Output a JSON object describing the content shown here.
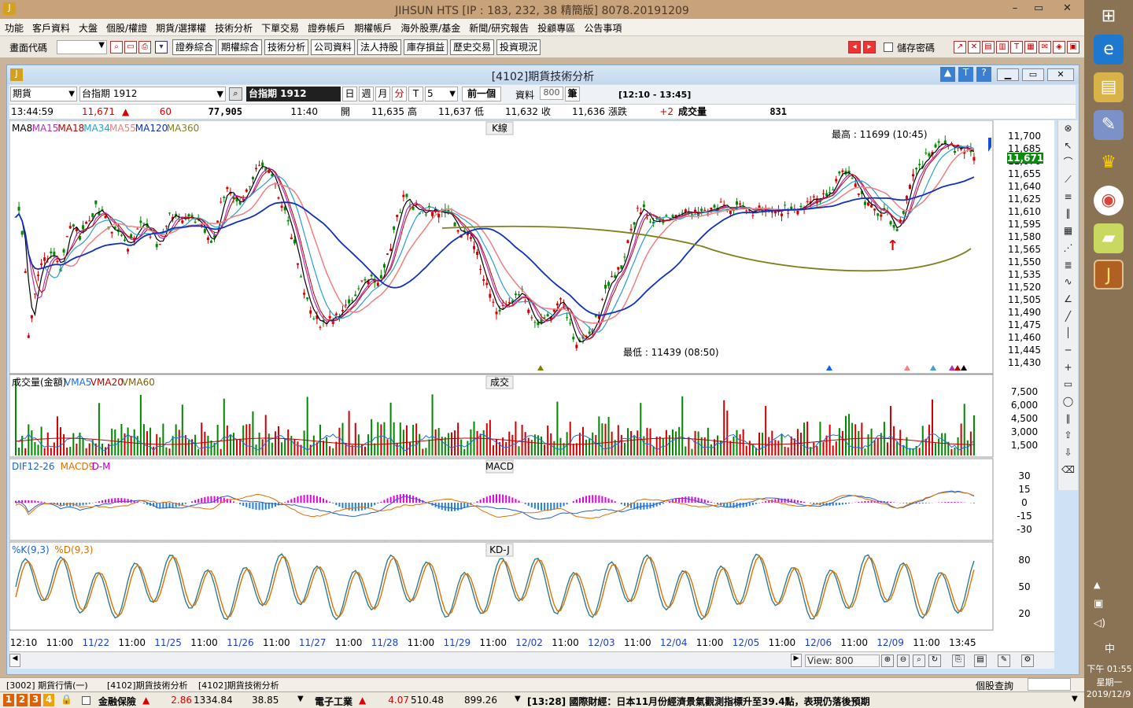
{
  "window": {
    "title": "JIHSUN HTS    [IP : 183, 232, 38 精簡版] 8078.20191209"
  },
  "menu": [
    "功能",
    "客戶資料",
    "大盤",
    "個股/權證",
    "期貨/選擇權",
    "技術分析",
    "下單交易",
    "證券帳戶",
    "期權帳戶",
    "海外股票/基金",
    "新聞/研究報告",
    "投顧專區",
    "公告事項"
  ],
  "toolbar": {
    "code_label": "畫面代碼",
    "buttons": [
      "證券綜合",
      "期權綜合",
      "技術分析",
      "公司資料",
      "法人持股",
      "庫存損益",
      "歷史交易",
      "投資現況"
    ],
    "save_password": "儲存密碼"
  },
  "child": {
    "title": "[4102]期貨技術分析"
  },
  "query": {
    "type": "期貨",
    "symbol": "台指期 1912",
    "symbol_tag": "台指期 1912",
    "periods": [
      "日",
      "週",
      "月",
      "分",
      "T"
    ],
    "active_period": "分",
    "interval": "5",
    "prev": "前一個",
    "data_label": "資料",
    "data_count": "800",
    "unit": "筆",
    "time_range": "[12:10 - 13:45]"
  },
  "info": {
    "time": "13:44:59",
    "price": "11,671",
    "change": "60",
    "volume_total": "77,905",
    "bar_time": "11:40",
    "open_label": "開",
    "open": "11,635",
    "high_label": "高",
    "high": "11,637",
    "low_label": "低",
    "low": "11,632",
    "close_label": "收",
    "close": "11,636",
    "chg_label": "漲跌",
    "chg": "+2",
    "vol_label": "成交量",
    "vol": "831"
  },
  "panels": {
    "kline": {
      "name": "K線",
      "legend": [
        "MA8",
        "MA15",
        "MA18",
        "MA34",
        "MA55",
        "MA120",
        "MA360"
      ],
      "legend_colors": [
        "#000",
        "#b030b0",
        "#c00000",
        "#28a0d0",
        "#f08080",
        "#1030c0",
        "#808020"
      ],
      "max_note": "最高 : 11699 (10:45)",
      "min_note": "最低 : 11439 (08:50)",
      "price_tag": "11,671",
      "yticks": [
        "11,700",
        "11,685",
        "11,670",
        "11,655",
        "11,640",
        "11,625",
        "11,610",
        "11,595",
        "11,580",
        "11,565",
        "11,550",
        "11,535",
        "11,520",
        "11,505",
        "11,490",
        "11,475",
        "11,460",
        "11,445",
        "11,430"
      ]
    },
    "volume": {
      "name": "成交",
      "legend": [
        "成交量(金額)",
        "VMA5",
        "VMA20",
        "VMA60"
      ],
      "legend_colors": [
        "#000",
        "#1b6fe0",
        "#c00000",
        "#806000"
      ],
      "yticks": [
        "7,500",
        "6,000",
        "4,500",
        "3,000",
        "1,500"
      ]
    },
    "macd": {
      "name": "MACD",
      "legend": [
        "DIF12-26",
        "MACD9",
        "D-M"
      ],
      "legend_colors": [
        "#2060d0",
        "#e07000",
        "#c000c0"
      ],
      "yticks": [
        "30",
        "15",
        "0",
        "-15",
        "-30"
      ]
    },
    "kd": {
      "name": "KD-J",
      "legend": [
        "%K(9,3)",
        "%D(9,3)"
      ],
      "legend_colors": [
        "#2060d0",
        "#e07000"
      ],
      "yticks": [
        "80",
        "50",
        "20"
      ]
    }
  },
  "xaxis": [
    "12:10",
    "11:00",
    "11/22",
    "11:00",
    "11/25",
    "11:00",
    "11/26",
    "11:00",
    "11/27",
    "11:00",
    "11/28",
    "11:00",
    "11/29",
    "11:00",
    "12/02",
    "11:00",
    "12/03",
    "11:00",
    "12/04",
    "11:00",
    "12/05",
    "11:00",
    "12/06",
    "11:00",
    "12/09",
    "11:00",
    "13:45"
  ],
  "scroll": {
    "view_label": "View: 800"
  },
  "tabs": [
    "[3002] 期貨行情(一)",
    "[4102]期貨技術分析",
    "[4102]期貨技術分析"
  ],
  "status": {
    "pages": [
      "1",
      "2",
      "3",
      "4"
    ],
    "quote_label": "個股查詢",
    "ins_name": "金融保險",
    "ins_chg": "2.86",
    "ins_val": "1334.84",
    "ins_vol": "38.85",
    "elec_name": "電子工業",
    "elec_chg": "4.07",
    "elec_val": "510.48",
    "elec_vol": "899.26",
    "news": "[13:28] 國際財經：日本11月份經濟景氣觀測指標升至39.4點，表現仍落後預期"
  },
  "clock": {
    "time": "下午 01:55",
    "weekday": "星期一",
    "date": "2019/12/9",
    "ime": "中"
  }
}
